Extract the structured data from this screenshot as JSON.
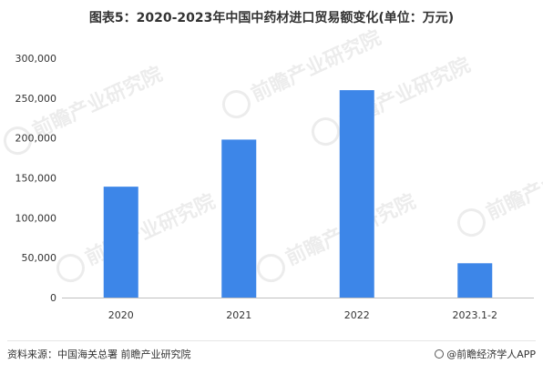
{
  "title": "图表5：2020-2023年中国中药材进口贸易额变化(单位：万元)",
  "chart_data": {
    "type": "bar",
    "categories": [
      "2020",
      "2021",
      "2022",
      "2023.1-2"
    ],
    "values": [
      139000,
      198000,
      260000,
      43000
    ],
    "ylim": [
      0,
      300000
    ],
    "yticks": [
      "0",
      "50,000",
      "100,000",
      "150,000",
      "200,000",
      "250,000",
      "300,000"
    ],
    "bar_color": "#3d86e8",
    "grid": false
  },
  "footer": {
    "source": "资料来源：中国海关总署 前瞻产业研究院",
    "brand": "@前瞻经济学人APP",
    "brand_icon": "qianzhan-logo-icon"
  },
  "watermark": {
    "text": "前瞻产业研究院"
  }
}
